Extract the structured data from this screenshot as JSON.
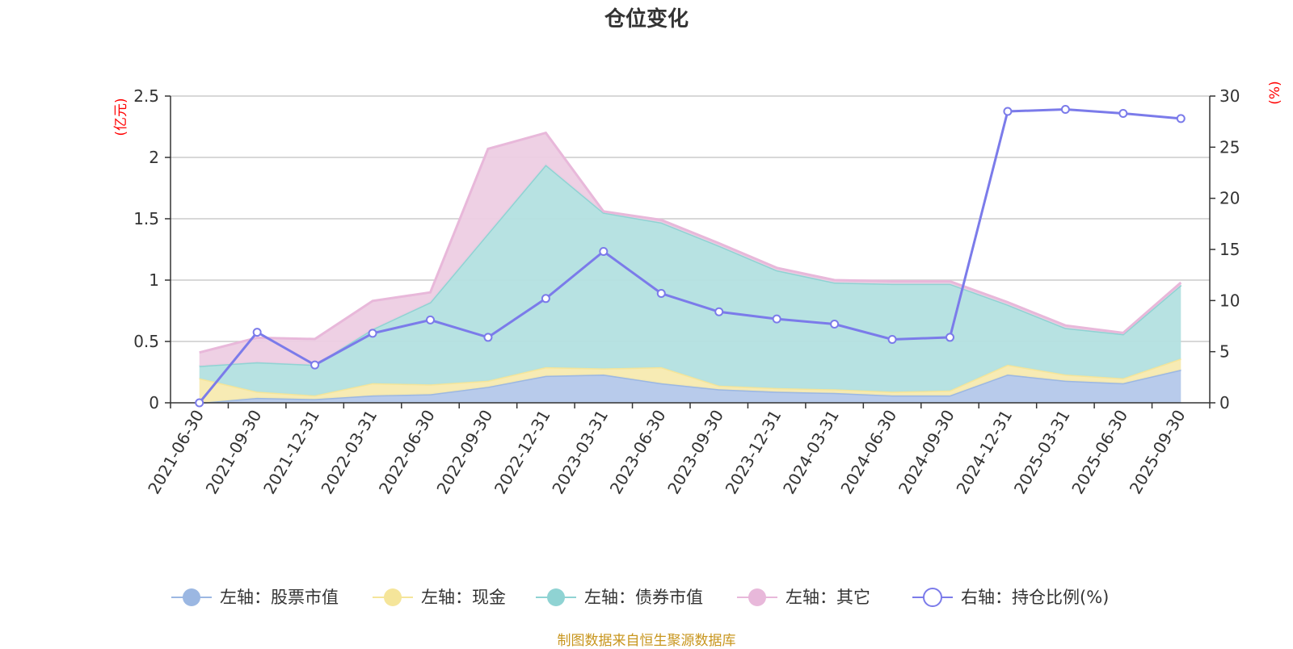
{
  "chart_data": {
    "type": "area",
    "title": "仓位变化",
    "categories": [
      "2021-06-30",
      "2021-09-30",
      "2021-12-31",
      "2022-03-31",
      "2022-06-30",
      "2022-09-30",
      "2022-12-31",
      "2023-03-31",
      "2023-06-30",
      "2023-09-30",
      "2023-12-31",
      "2024-03-31",
      "2024-06-30",
      "2024-09-30",
      "2024-12-31",
      "2025-03-31",
      "2025-06-30",
      "2025-09-30"
    ],
    "left_axis": {
      "unit": "(亿元)",
      "ylim": [
        0,
        2.5
      ],
      "ticks": [
        "0",
        "0.5",
        "1",
        "1.5",
        "2",
        "2.5"
      ]
    },
    "right_axis": {
      "unit": "(%)",
      "ylim": [
        0,
        30
      ],
      "ticks": [
        "0",
        "5",
        "10",
        "15",
        "20",
        "25",
        "30"
      ]
    },
    "stacked_series": [
      {
        "name": "左轴：股票市值",
        "color": "#9bb7e2",
        "fill": "#b4c8ea",
        "values": [
          0.0,
          0.04,
          0.03,
          0.06,
          0.07,
          0.13,
          0.22,
          0.23,
          0.16,
          0.11,
          0.09,
          0.08,
          0.06,
          0.06,
          0.23,
          0.18,
          0.16,
          0.27
        ]
      },
      {
        "name": "左轴：现金",
        "color": "#f5e59a",
        "fill": "#f7eab0",
        "values": [
          0.2,
          0.05,
          0.03,
          0.1,
          0.08,
          0.05,
          0.07,
          0.05,
          0.13,
          0.03,
          0.03,
          0.03,
          0.03,
          0.04,
          0.08,
          0.05,
          0.04,
          0.09
        ]
      },
      {
        "name": "左轴：债券市值",
        "color": "#8fd3d3",
        "fill": "#b3e0e0",
        "values": [
          0.1,
          0.24,
          0.25,
          0.44,
          0.67,
          1.2,
          1.65,
          1.27,
          1.18,
          1.14,
          0.96,
          0.87,
          0.88,
          0.87,
          0.49,
          0.38,
          0.36,
          0.6
        ]
      },
      {
        "name": "左轴：其它",
        "color": "#e8b8da",
        "fill": "#edcde3",
        "values": [
          0.11,
          0.2,
          0.21,
          0.23,
          0.08,
          0.69,
          0.26,
          0.01,
          0.02,
          0.02,
          0.02,
          0.02,
          0.02,
          0.02,
          0.02,
          0.02,
          0.01,
          0.02
        ]
      }
    ],
    "line_series": {
      "name": "右轴：持仓比例(%)",
      "color": "#7b7bea",
      "axis": "right",
      "values": [
        0.0,
        6.9,
        3.7,
        6.8,
        8.1,
        6.4,
        10.2,
        14.8,
        10.7,
        8.9,
        8.2,
        7.7,
        6.2,
        6.4,
        28.5,
        28.7,
        28.3,
        27.8
      ]
    },
    "legend_position": "bottom-center",
    "grid": true
  },
  "legend": [
    {
      "label": "左轴：股票市值",
      "color": "#9bb7e2",
      "marker": "filled-circle"
    },
    {
      "label": "左轴：现金",
      "color": "#f5e59a",
      "marker": "filled-circle"
    },
    {
      "label": "左轴：债券市值",
      "color": "#8fd3d3",
      "marker": "filled-circle"
    },
    {
      "label": "左轴：其它",
      "color": "#e8b8da",
      "marker": "filled-circle"
    },
    {
      "label": "右轴：持仓比例(%)",
      "color": "#7b7bea",
      "marker": "hollow-circle"
    }
  ],
  "source_note": "制图数据来自恒生聚源数据库"
}
